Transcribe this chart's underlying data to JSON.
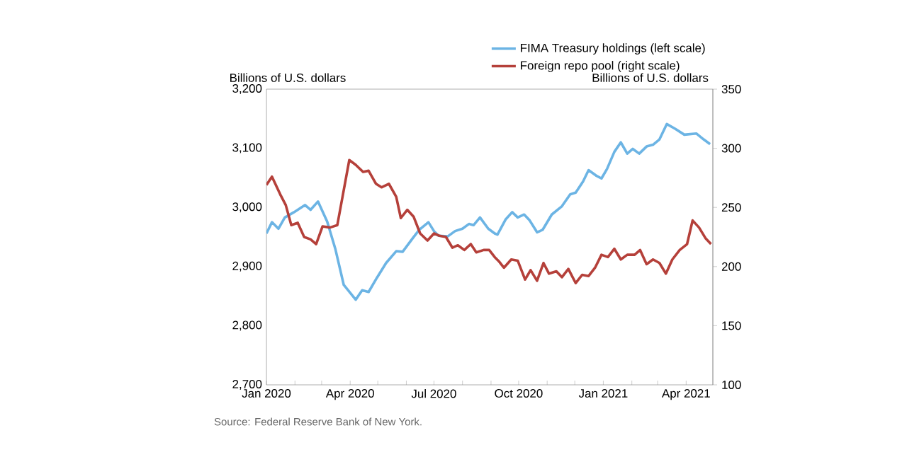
{
  "chart_data": {
    "type": "line",
    "ylabel": "Billions of U.S. dollars",
    "y2label": "Billions of U.S. dollars",
    "series": [
      {
        "name": "FIMA Treasury holdings (left scale)",
        "color": "#6cb4e4",
        "axis": "y",
        "x": [
          "2020-01-01",
          "2020-01-07",
          "2020-01-14",
          "2020-01-21",
          "2020-01-31",
          "2020-02-12",
          "2020-02-18",
          "2020-02-26",
          "2020-03-07",
          "2020-03-16",
          "2020-03-25",
          "2020-04-07",
          "2020-04-14",
          "2020-04-21",
          "2020-04-30",
          "2020-05-10",
          "2020-05-21",
          "2020-05-28",
          "2020-06-08",
          "2020-06-15",
          "2020-06-25",
          "2020-07-01",
          "2020-07-06",
          "2020-07-16",
          "2020-07-24",
          "2020-08-01",
          "2020-08-08",
          "2020-08-13",
          "2020-08-20",
          "2020-08-29",
          "2020-09-05",
          "2020-09-08",
          "2020-09-17",
          "2020-09-24",
          "2020-09-30",
          "2020-10-07",
          "2020-10-13",
          "2020-10-21",
          "2020-10-27",
          "2020-11-06",
          "2020-11-17",
          "2020-11-26",
          "2020-12-02",
          "2020-12-10",
          "2020-12-16",
          "2020-12-24",
          "2020-12-30",
          "2021-01-05",
          "2021-01-13",
          "2021-01-20",
          "2021-01-27",
          "2021-02-02",
          "2021-02-09",
          "2021-02-17",
          "2021-02-24",
          "2021-03-03",
          "2021-03-11",
          "2021-03-20",
          "2021-03-30",
          "2021-04-12",
          "2021-04-20",
          "2021-04-27"
        ],
        "values": [
          2956,
          2975,
          2964,
          2983,
          2992,
          3004,
          2996,
          3010,
          2976,
          2929,
          2869,
          2844,
          2860,
          2857,
          2881,
          2906,
          2926,
          2925,
          2948,
          2962,
          2975,
          2960,
          2952,
          2951,
          2960,
          2964,
          2972,
          2970,
          2983,
          2964,
          2956,
          2954,
          2980,
          2992,
          2983,
          2988,
          2978,
          2958,
          2962,
          2988,
          3002,
          3022,
          3025,
          3044,
          3063,
          3054,
          3049,
          3065,
          3094,
          3110,
          3091,
          3099,
          3091,
          3103,
          3106,
          3115,
          3141,
          3133,
          3123,
          3125,
          3115,
          3107
        ]
      },
      {
        "name": "Foreign repo pool (right scale)",
        "color": "#b5403a",
        "axis": "y2",
        "x": [
          "2020-01-01",
          "2020-01-07",
          "2020-01-16",
          "2020-01-22",
          "2020-01-28",
          "2020-02-04",
          "2020-02-11",
          "2020-02-18",
          "2020-02-24",
          "2020-03-02",
          "2020-03-10",
          "2020-03-18",
          "2020-03-31",
          "2020-04-07",
          "2020-04-15",
          "2020-04-21",
          "2020-04-29",
          "2020-05-05",
          "2020-05-13",
          "2020-05-21",
          "2020-05-26",
          "2020-06-02",
          "2020-06-09",
          "2020-06-16",
          "2020-06-24",
          "2020-07-01",
          "2020-07-07",
          "2020-07-14",
          "2020-07-21",
          "2020-07-27",
          "2020-08-03",
          "2020-08-10",
          "2020-08-16",
          "2020-08-24",
          "2020-08-30",
          "2020-09-05",
          "2020-09-10",
          "2020-09-15",
          "2020-09-23",
          "2020-09-30",
          "2020-10-08",
          "2020-10-14",
          "2020-10-21",
          "2020-10-28",
          "2020-11-03",
          "2020-11-11",
          "2020-11-17",
          "2020-11-24",
          "2020-12-02",
          "2020-12-09",
          "2020-12-16",
          "2020-12-23",
          "2020-12-30",
          "2021-01-06",
          "2021-01-13",
          "2021-01-20",
          "2021-01-27",
          "2021-02-04",
          "2021-02-10",
          "2021-02-17",
          "2021-02-24",
          "2021-03-03",
          "2021-03-10",
          "2021-03-17",
          "2021-03-25",
          "2021-04-02",
          "2021-04-08",
          "2021-04-15",
          "2021-04-22",
          "2021-04-28"
        ],
        "values": [
          269,
          276,
          261,
          252,
          235,
          237,
          225,
          223,
          219,
          234,
          233,
          235,
          290,
          286,
          280,
          281,
          270,
          267,
          270,
          259,
          241,
          248,
          242,
          228,
          222,
          228,
          226,
          225,
          216,
          218,
          214,
          219,
          212,
          214,
          214,
          208,
          204,
          199,
          206,
          205,
          189,
          197,
          188,
          203,
          194,
          196,
          191,
          198,
          186,
          193,
          192,
          199,
          210,
          208,
          215,
          206,
          210,
          210,
          214,
          202,
          206,
          203,
          194,
          206,
          214,
          219,
          239,
          233,
          224,
          219
        ]
      }
    ],
    "xlim": [
      "2020-01-01",
      "2021-04-30"
    ],
    "xticks": [
      {
        "value": "2020-01-01",
        "label": "Jan 2020"
      },
      {
        "value": "2020-02-01",
        "label": null
      },
      {
        "value": "2020-03-01",
        "label": null
      },
      {
        "value": "2020-04-01",
        "label": "Apr 2020"
      },
      {
        "value": "2020-05-01",
        "label": null
      },
      {
        "value": "2020-06-01",
        "label": null
      },
      {
        "value": "2020-07-01",
        "label": "Jul 2020"
      },
      {
        "value": "2020-08-01",
        "label": null
      },
      {
        "value": "2020-09-01",
        "label": null
      },
      {
        "value": "2020-10-01",
        "label": "Oct 2020"
      },
      {
        "value": "2020-11-01",
        "label": null
      },
      {
        "value": "2020-12-01",
        "label": null
      },
      {
        "value": "2021-01-01",
        "label": "Jan 2021"
      },
      {
        "value": "2021-02-01",
        "label": null
      },
      {
        "value": "2021-03-01",
        "label": null
      },
      {
        "value": "2021-04-01",
        "label": "Apr 2021"
      }
    ],
    "ylim": [
      2700,
      3200
    ],
    "yticks": [
      {
        "value": 2700,
        "label": "2,700"
      },
      {
        "value": 2800,
        "label": "2,800"
      },
      {
        "value": 2900,
        "label": "2,900"
      },
      {
        "value": 3000,
        "label": "3,000"
      },
      {
        "value": 3100,
        "label": "3,100"
      },
      {
        "value": 3200,
        "label": "3,200"
      }
    ],
    "y2lim": [
      100,
      350
    ],
    "y2ticks": [
      100,
      150,
      200,
      250,
      300,
      350
    ],
    "legend": "top right",
    "annotations": [
      "Source: Federal Reserve Bank of New York."
    ]
  }
}
